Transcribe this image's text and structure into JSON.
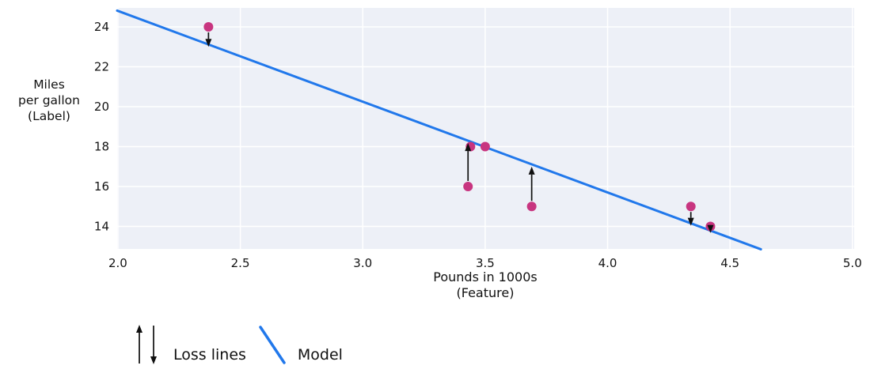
{
  "chart_data": {
    "type": "scatter",
    "title": "",
    "xlabel": "Pounds in 1000s\n(Feature)",
    "ylabel": "Miles\nper gallon\n(Label)",
    "x_ticks": [
      "2.0",
      "2.5",
      "3.0",
      "3.5",
      "4.0",
      "4.5",
      "5.0"
    ],
    "y_ticks": [
      "14",
      "16",
      "18",
      "20",
      "22",
      "24"
    ],
    "xlim": [
      1.997,
      5.007
    ],
    "ylim": [
      12.87,
      24.95
    ],
    "grid": true,
    "legend_position": "bottom-left",
    "points": [
      {
        "x": 2.37,
        "y": 24
      },
      {
        "x": 3.5,
        "y": 18
      },
      {
        "x": 3.44,
        "y": 18
      },
      {
        "x": 3.43,
        "y": 16
      },
      {
        "x": 3.69,
        "y": 15
      },
      {
        "x": 4.34,
        "y": 15
      },
      {
        "x": 4.42,
        "y": 14
      }
    ],
    "model_line": {
      "intercept": 33.9,
      "slope": -4.55,
      "x_start": 1.997,
      "x_end": 4.626
    },
    "loss_arrows": [
      {
        "x": 2.37,
        "y": 24,
        "direction": "down"
      },
      {
        "x": 3.43,
        "y": 16,
        "direction": "up"
      },
      {
        "x": 3.69,
        "y": 15,
        "direction": "up"
      },
      {
        "x": 4.34,
        "y": 15,
        "direction": "down"
      },
      {
        "x": 4.42,
        "y": 14,
        "direction": "down"
      }
    ],
    "colors": {
      "point": "#c83580",
      "model_line": "#2178eb",
      "loss_arrow": "#0f0f0f",
      "plot_bg": "#edf0f7",
      "grid": "#ffffff",
      "text": "#141414"
    }
  },
  "legend": {
    "loss_label": "Loss lines",
    "model_label": "Model"
  }
}
